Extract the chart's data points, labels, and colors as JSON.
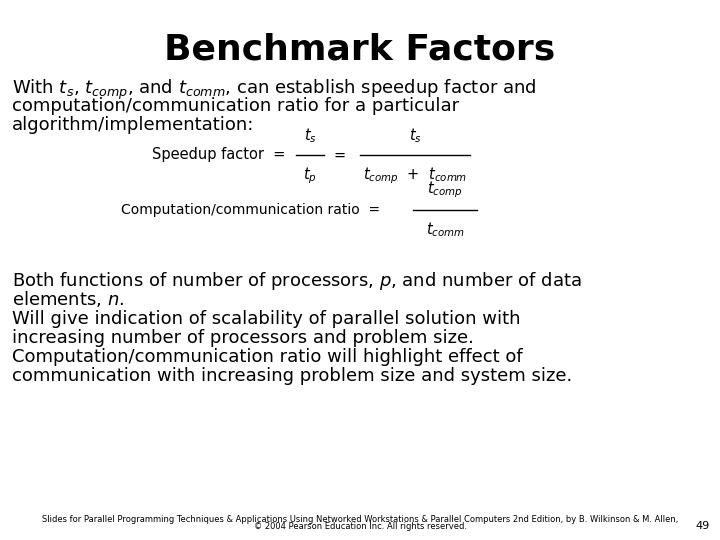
{
  "title": "Benchmark Factors",
  "title_fontsize": 26,
  "title_fontweight": "bold",
  "bg_color": "#ffffff",
  "text_color": "#000000",
  "body_fontsize": 13.0,
  "eq_fontsize": 10.5,
  "small_fontsize": 6.0,
  "page_number": "49",
  "subtitle_line1": "With $t_s$, $t_{comp}$, and $t_{comm}$, can establish speedup factor and",
  "subtitle_line2": "computation/communication ratio for a particular",
  "subtitle_line3": "algorithm/implementation:",
  "bottom_text1_line1": "Both functions of number of processors, $p$, and number of data",
  "bottom_text1_line2": "elements, $n$.",
  "bottom_text2_line1": "Will give indication of scalability of parallel solution with",
  "bottom_text2_line2": "increasing number of processors and problem size.",
  "bottom_text2_line3": "Computation/communication ratio will highlight effect of",
  "bottom_text2_line4": "communication with increasing problem size and system size.",
  "footer_line1": "Slides for Parallel Programming Techniques & Applications Using Networked Workstations & Parallel Computers 2nd Edition, by B. Wilkinson & M. Allen,",
  "footer_line2": "© 2004 Pearson Education Inc. All rights reserved.",
  "eq1_label": "Speedup factor  =",
  "eq2_label": "Computation/communication ratio  ="
}
